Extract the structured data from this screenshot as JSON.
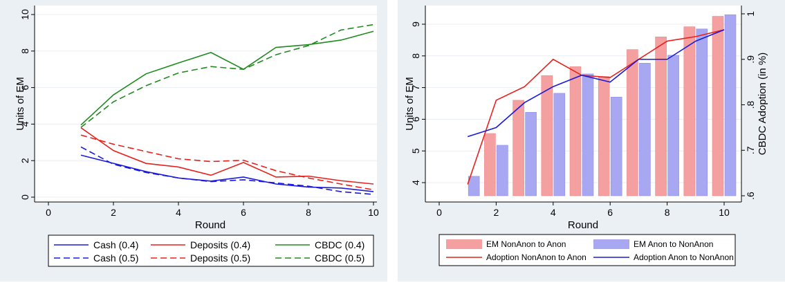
{
  "chart_data": [
    {
      "type": "line",
      "xlabel": "Round",
      "ylabel": "Units of EM",
      "xlim": [
        0,
        10
      ],
      "ylim": [
        0,
        10
      ],
      "xticks": [
        "0",
        "2",
        "4",
        "6",
        "8",
        "10"
      ],
      "yticks": [
        "0",
        "2",
        "4",
        "6",
        "8",
        "10"
      ],
      "x": [
        1,
        2,
        3,
        4,
        5,
        6,
        7,
        8,
        9,
        10
      ],
      "series": [
        {
          "name": "Cash (0.4)",
          "color": "#1a1adc",
          "dash": "solid",
          "values": [
            2.3,
            1.85,
            1.4,
            1.05,
            0.88,
            1.1,
            0.72,
            0.55,
            0.5,
            0.3
          ]
        },
        {
          "name": "Deposits (0.4)",
          "color": "#e8201c",
          "dash": "solid",
          "values": [
            3.8,
            2.55,
            1.85,
            1.65,
            1.2,
            1.9,
            1.1,
            1.15,
            0.9,
            0.72
          ]
        },
        {
          "name": "CBDC (0.4)",
          "color": "#1f8a1f",
          "dash": "solid",
          "values": [
            3.95,
            5.6,
            6.75,
            7.35,
            7.92,
            7.0,
            8.2,
            8.35,
            8.6,
            9.08
          ]
        },
        {
          "name": "Cash (0.5)",
          "color": "#1a1adc",
          "dash": "dashed",
          "values": [
            2.75,
            1.8,
            1.35,
            1.05,
            0.85,
            0.95,
            0.78,
            0.6,
            0.3,
            0.15
          ]
        },
        {
          "name": "Deposits (0.5)",
          "color": "#e8201c",
          "dash": "dashed",
          "values": [
            3.4,
            2.9,
            2.5,
            2.1,
            1.95,
            2.02,
            1.45,
            1.05,
            0.72,
            0.4
          ]
        },
        {
          "name": "CBDC (0.5)",
          "color": "#1f8a1f",
          "dash": "dashed",
          "values": [
            3.82,
            5.22,
            6.1,
            6.8,
            7.15,
            7.0,
            7.8,
            8.3,
            9.15,
            9.45
          ]
        }
      ],
      "legend": "bottom"
    },
    {
      "type": "bar",
      "xlabel": "Round",
      "ylabel": "Units of EM",
      "y2label": "CBDC Adoption (in %)",
      "xlim": [
        0,
        10
      ],
      "ylim": [
        3.5,
        9.5
      ],
      "y2lim": [
        0.6,
        1.0
      ],
      "xticks": [
        "0",
        "2",
        "4",
        "6",
        "8",
        "10"
      ],
      "yticks": [
        "4",
        "5",
        "6",
        "7",
        "8",
        "9"
      ],
      "y2ticks": [
        ".6",
        ".7",
        ".8",
        ".9",
        "1"
      ],
      "x": [
        1,
        2,
        3,
        4,
        5,
        6,
        7,
        8,
        9,
        10
      ],
      "bars": [
        {
          "name": "EM NonAnon to Anon",
          "color": "#f4a0a0",
          "values": [
            null,
            5.55,
            6.6,
            7.38,
            7.66,
            7.35,
            8.2,
            8.6,
            8.92,
            9.25
          ]
        },
        {
          "name": "EM Anon to NonAnon",
          "color": "#a8a8f2",
          "values": [
            4.2,
            5.18,
            6.22,
            6.82,
            7.43,
            6.7,
            7.77,
            8.02,
            8.85,
            9.3
          ]
        }
      ],
      "lines": [
        {
          "name": "Adoption NonAnon to Anon",
          "color": "#e8201c",
          "values": [
            0.625,
            0.81,
            0.84,
            0.9,
            0.865,
            0.86,
            0.9,
            0.94,
            0.95,
            0.965
          ]
        },
        {
          "name": "Adoption Anon to NonAnon",
          "color": "#1a1adc",
          "values": [
            0.73,
            0.75,
            0.805,
            0.84,
            0.865,
            0.85,
            0.9,
            0.9,
            0.94,
            0.965
          ]
        }
      ],
      "legend": "bottom"
    }
  ]
}
